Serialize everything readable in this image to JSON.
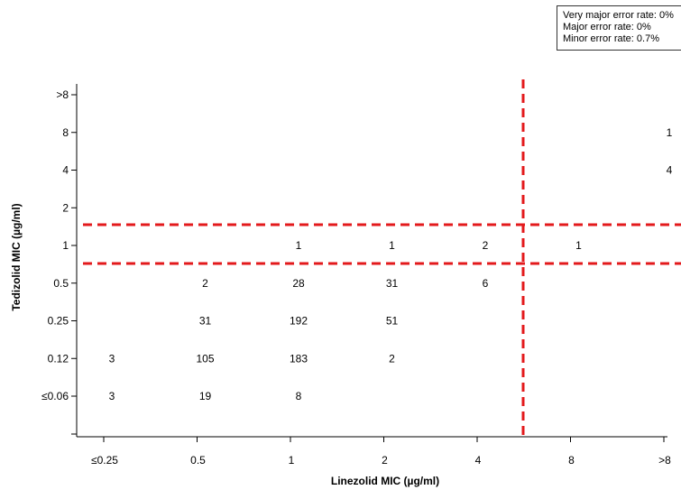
{
  "legend": {
    "very_major": "Very major error rate: 0%",
    "major": "Major error rate: 0%",
    "minor": "Minor error rate: 0.7%"
  },
  "chart_data": {
    "type": "heatmap",
    "xlabel": "Linezolid MIC (µg/ml)",
    "ylabel": "Tedizolid MIC (µg/ml)",
    "x_categories": [
      "≤0.25",
      "0.5",
      "1",
      "2",
      "4",
      "8",
      ">8"
    ],
    "y_categories": [
      "≤0.06",
      "0.12",
      "0.25",
      "0.5",
      "1",
      "2",
      "4",
      "8",
      ">8"
    ],
    "cells": [
      {
        "x": "≤0.25",
        "y": "≤0.06",
        "count": 3
      },
      {
        "x": "0.5",
        "y": "≤0.06",
        "count": 19
      },
      {
        "x": "1",
        "y": "≤0.06",
        "count": 8
      },
      {
        "x": "≤0.25",
        "y": "0.12",
        "count": 3
      },
      {
        "x": "0.5",
        "y": "0.12",
        "count": 105
      },
      {
        "x": "1",
        "y": "0.12",
        "count": 183
      },
      {
        "x": "2",
        "y": "0.12",
        "count": 2
      },
      {
        "x": "0.5",
        "y": "0.25",
        "count": 31
      },
      {
        "x": "1",
        "y": "0.25",
        "count": 192
      },
      {
        "x": "2",
        "y": "0.25",
        "count": 51
      },
      {
        "x": "0.5",
        "y": "0.5",
        "count": 2
      },
      {
        "x": "1",
        "y": "0.5",
        "count": 28
      },
      {
        "x": "2",
        "y": "0.5",
        "count": 31
      },
      {
        "x": "4",
        "y": "0.5",
        "count": 6
      },
      {
        "x": "1",
        "y": "1",
        "count": 1
      },
      {
        "x": "2",
        "y": "1",
        "count": 1
      },
      {
        "x": "4",
        "y": "1",
        "count": 2
      },
      {
        "x": "8",
        "y": "1",
        "count": 1
      },
      {
        "x": ">8",
        "y": "4",
        "count": 4
      },
      {
        "x": ">8",
        "y": "8",
        "count": 1
      }
    ],
    "breakpoints": {
      "vertical_between_x": [
        "4",
        "8"
      ],
      "horizontal_between_y": [
        [
          "0.5",
          "1"
        ],
        [
          "1",
          "2"
        ]
      ],
      "color": "#e31a1c",
      "style": "dashed"
    },
    "grid": false
  }
}
